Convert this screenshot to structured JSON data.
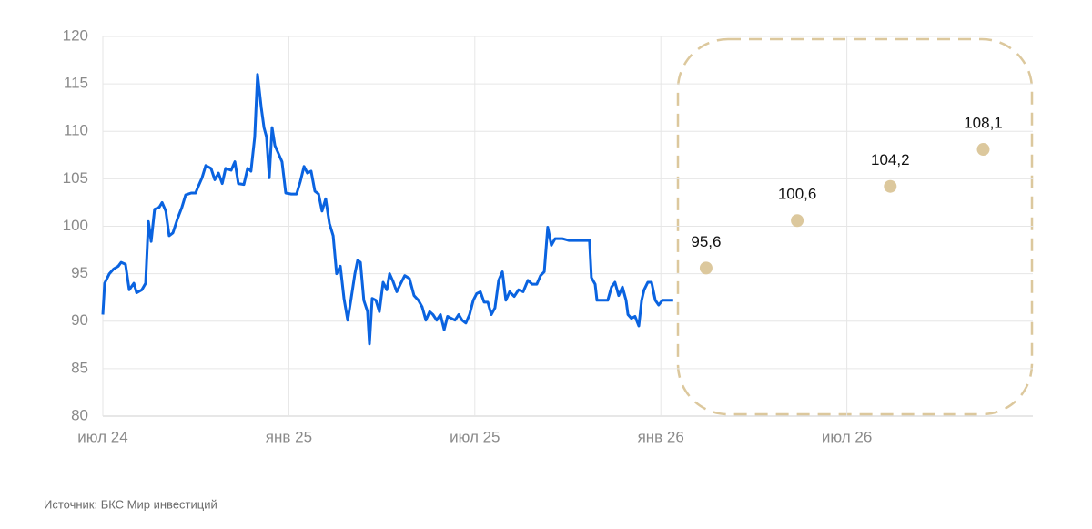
{
  "chart_data": {
    "type": "line",
    "source": "Источник: БКС Мир инвестиций",
    "xlim": [
      0,
      30
    ],
    "xticks": [
      {
        "value": 0,
        "label": "июл 24"
      },
      {
        "value": 6,
        "label": "янв 25"
      },
      {
        "value": 12,
        "label": "июл 25"
      },
      {
        "value": 18,
        "label": "янв 26"
      },
      {
        "value": 24,
        "label": "июл 26"
      }
    ],
    "ylim": [
      80,
      120
    ],
    "yticks": [
      80,
      85,
      90,
      95,
      100,
      105,
      110,
      115,
      120
    ],
    "grid": true,
    "series": [
      {
        "type": "line",
        "color": "#0a63e0",
        "x": [
          0,
          0.06,
          0.21,
          0.35,
          0.5,
          0.59,
          0.73,
          0.85,
          1.0,
          1.09,
          1.26,
          1.38,
          1.47,
          1.56,
          1.67,
          1.82,
          1.91,
          2.03,
          2.14,
          2.26,
          2.41,
          2.55,
          2.67,
          2.85,
          2.99,
          3.08,
          3.2,
          3.32,
          3.49,
          3.61,
          3.73,
          3.85,
          3.96,
          4.14,
          4.26,
          4.37,
          4.55,
          4.67,
          4.78,
          4.9,
          4.99,
          5.11,
          5.2,
          5.28,
          5.37,
          5.46,
          5.55,
          5.66,
          5.78,
          5.9,
          6.08,
          6.25,
          6.37,
          6.49,
          6.6,
          6.72,
          6.84,
          6.96,
          7.07,
          7.19,
          7.31,
          7.43,
          7.54,
          7.66,
          7.78,
          7.9,
          8.01,
          8.13,
          8.22,
          8.31,
          8.42,
          8.54,
          8.6,
          8.69,
          8.81,
          8.92,
          9.04,
          9.16,
          9.25,
          9.36,
          9.48,
          9.6,
          9.74,
          9.89,
          10.04,
          10.18,
          10.3,
          10.42,
          10.54,
          10.65,
          10.77,
          10.89,
          11.01,
          11.12,
          11.24,
          11.36,
          11.48,
          11.59,
          11.71,
          11.83,
          11.95,
          12.06,
          12.18,
          12.3,
          12.42,
          12.53,
          12.65,
          12.77,
          12.89,
          13.0,
          13.12,
          13.27,
          13.41,
          13.56,
          13.71,
          13.85,
          14.0,
          14.12,
          14.24,
          14.35,
          14.47,
          14.59,
          14.82,
          15.03,
          15.32,
          15.61,
          15.7,
          15.76,
          15.88,
          15.94,
          16.11,
          16.29,
          16.41,
          16.52,
          16.64,
          16.76,
          16.88,
          16.94,
          17.05,
          17.17,
          17.29,
          17.38,
          17.46,
          17.58,
          17.7,
          17.82,
          17.93,
          18.05,
          18.26,
          18.4
        ],
        "values": [
          90.7,
          94,
          95,
          95.5,
          95.8,
          96.2,
          96,
          93.3,
          94,
          93,
          93.3,
          94,
          100.5,
          98.4,
          101.8,
          102,
          102.5,
          101.6,
          99,
          99.3,
          100.8,
          102,
          103.3,
          103.5,
          103.5,
          104.2,
          105.1,
          106.4,
          106.1,
          104.9,
          105.6,
          104.5,
          106.1,
          105.9,
          106.8,
          104.5,
          104.4,
          106.1,
          105.8,
          109.4,
          116,
          112.5,
          110.4,
          109.4,
          105.1,
          110.4,
          108.5,
          107.7,
          106.8,
          103.5,
          103.4,
          103.4,
          104.7,
          106.3,
          105.6,
          105.8,
          103.7,
          103.4,
          101.6,
          102.9,
          100.3,
          99,
          95,
          95.8,
          92.4,
          90.1,
          92.4,
          95,
          96.4,
          96.2,
          92.2,
          91,
          87.6,
          92.4,
          92.2,
          91,
          94.1,
          93.3,
          95,
          94.2,
          93.1,
          93.9,
          94.8,
          94.5,
          92.7,
          92.2,
          91.5,
          90.1,
          91,
          90.7,
          90.1,
          90.7,
          89.1,
          90.5,
          90.3,
          90.1,
          90.7,
          90.1,
          89.8,
          90.7,
          92.2,
          92.9,
          93.1,
          92,
          92,
          90.7,
          91.4,
          94.3,
          95.2,
          92.2,
          93.1,
          92.6,
          93.3,
          93.1,
          94.3,
          93.9,
          93.9,
          94.8,
          95.2,
          99.9,
          98,
          98.7,
          98.7,
          98.5,
          98.5,
          98.5,
          98.5,
          94.6,
          93.9,
          92.2,
          92.2,
          92.2,
          93.6,
          94.1,
          92.7,
          93.6,
          92.2,
          90.7,
          90.3,
          90.5,
          89.5,
          92.2,
          93.3,
          94.1,
          94.1,
          92.2,
          91.7,
          92.2,
          92.2,
          92.2
        ]
      },
      {
        "type": "scatter",
        "color": "#dcc89d",
        "x": [
          19.46,
          22.4,
          25.4,
          28.4
        ],
        "values": [
          95.6,
          100.6,
          104.2,
          108.1
        ],
        "value_labels": [
          "95,6",
          "100,6",
          "104,2",
          "108,1"
        ]
      }
    ]
  }
}
